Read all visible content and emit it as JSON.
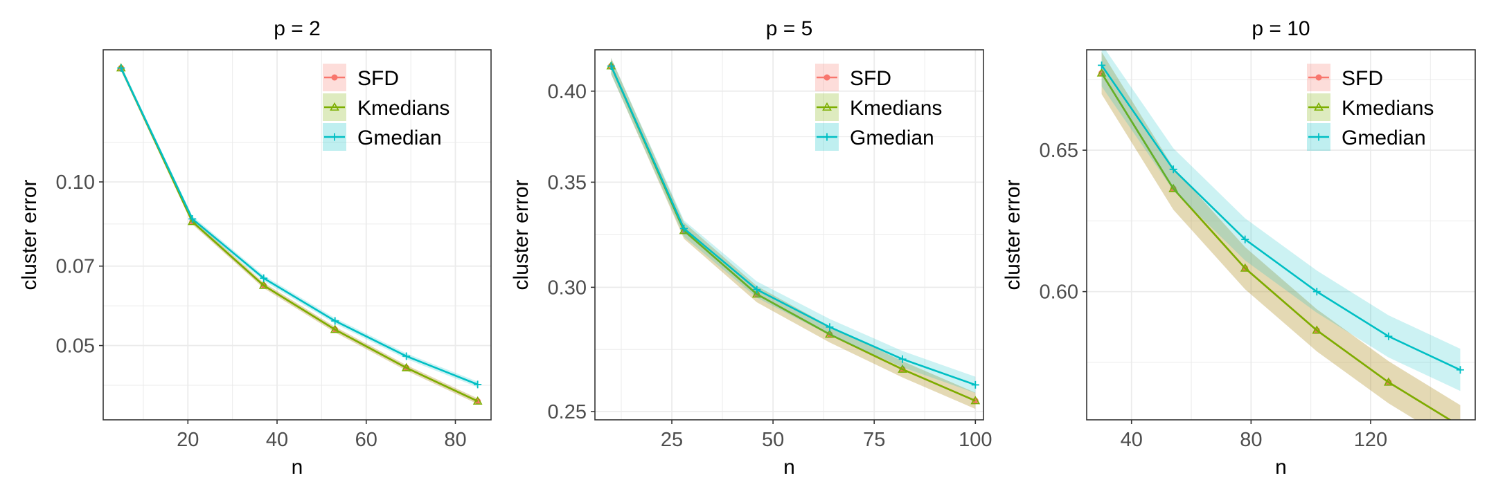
{
  "colors": {
    "SFD": "#F8766D",
    "Kmedians": "#7CAE00",
    "Gmedian": "#00BFC4",
    "grid": "#EBEBEB",
    "axis_text": "#4D4D4D",
    "panel_border": "#333333"
  },
  "chart_data": [
    {
      "type": "line",
      "title": "p = 2",
      "xlabel": "n",
      "ylabel": "cluster error",
      "y_scale": "log",
      "xlim": [
        1,
        88
      ],
      "ylim": [
        0.0365,
        0.175
      ],
      "x_ticks": [
        20,
        40,
        60,
        80
      ],
      "x_tick_labels": [
        "20",
        "40",
        "60",
        "80"
      ],
      "y_ticks": [
        0.05,
        0.07,
        0.1
      ],
      "y_tick_labels": [
        "0.05",
        "0.07",
        "0.10"
      ],
      "legend_position": "top-right",
      "x": [
        5,
        21,
        37,
        53,
        69,
        85
      ],
      "series": [
        {
          "name": "SFD",
          "marker": "circle",
          "values": [
            0.162,
            0.0845,
            0.0645,
            0.0535,
            0.0455,
            0.0395
          ]
        },
        {
          "name": "Kmedians",
          "marker": "triangle",
          "values": [
            0.162,
            0.0845,
            0.0645,
            0.0535,
            0.0455,
            0.0395
          ]
        },
        {
          "name": "Gmedian",
          "marker": "plus",
          "values": [
            0.162,
            0.0855,
            0.0665,
            0.0555,
            0.0478,
            0.0424
          ]
        }
      ]
    },
    {
      "type": "line",
      "title": "p = 5",
      "xlabel": "n",
      "ylabel": "cluster error",
      "y_scale": "log",
      "xlim": [
        6,
        102
      ],
      "ylim": [
        0.247,
        0.425
      ],
      "x_ticks": [
        25,
        50,
        75,
        100
      ],
      "x_tick_labels": [
        "25",
        "50",
        "75",
        "100"
      ],
      "y_ticks": [
        0.25,
        0.3,
        0.35,
        0.4
      ],
      "y_tick_labels": [
        "0.25",
        "0.30",
        "0.35",
        "0.40"
      ],
      "legend_position": "top-right",
      "x": [
        10,
        28,
        46,
        64,
        82,
        100
      ],
      "series": [
        {
          "name": "SFD",
          "marker": "circle",
          "values": [
            0.415,
            0.326,
            0.297,
            0.28,
            0.266,
            0.254
          ]
        },
        {
          "name": "Kmedians",
          "marker": "triangle",
          "values": [
            0.415,
            0.326,
            0.297,
            0.28,
            0.266,
            0.254
          ]
        },
        {
          "name": "Gmedian",
          "marker": "plus",
          "values": [
            0.415,
            0.327,
            0.299,
            0.283,
            0.27,
            0.26
          ]
        }
      ]
    },
    {
      "type": "line",
      "title": "p = 10",
      "xlabel": "n",
      "ylabel": "cluster error",
      "y_scale": "log",
      "xlim": [
        25,
        155
      ],
      "ylim": [
        0.558,
        0.688
      ],
      "x_ticks": [
        40,
        80,
        120
      ],
      "x_tick_labels": [
        "40",
        "80",
        "120"
      ],
      "y_ticks": [
        0.6,
        0.65
      ],
      "y_tick_labels": [
        "0.60",
        "0.65"
      ],
      "legend_position": "top-right",
      "x": [
        30,
        54,
        78,
        102,
        126,
        150
      ],
      "series": [
        {
          "name": "SFD",
          "marker": "circle",
          "values": [
            0.679,
            0.636,
            0.608,
            0.587,
            0.57,
            0.556
          ]
        },
        {
          "name": "Kmedians",
          "marker": "triangle",
          "values": [
            0.679,
            0.636,
            0.608,
            0.587,
            0.57,
            0.556
          ]
        },
        {
          "name": "Gmedian",
          "marker": "plus",
          "values": [
            0.682,
            0.643,
            0.618,
            0.6,
            0.585,
            0.574
          ]
        }
      ]
    }
  ]
}
